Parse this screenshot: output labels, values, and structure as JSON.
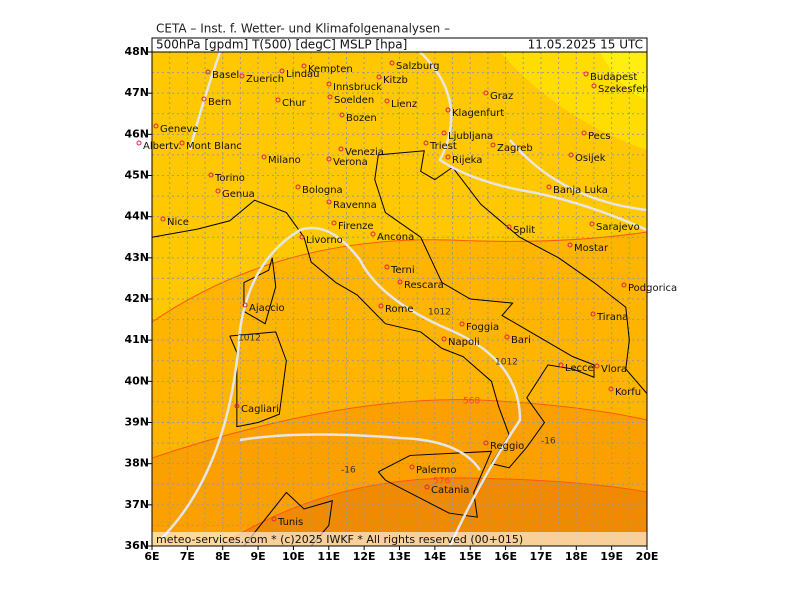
{
  "header": {
    "title": "CETA – Inst. f. Wetter- und Klimafolgenanalysen –",
    "fields": "500hPa [gpdm] T(500) [degC] MSLP [hpa]",
    "datetime": "11.05.2025 15 UTC"
  },
  "footer": "meteo-services.com * (c)2025 IWKF * All rights reserved (00+015)",
  "axes": {
    "lat": [
      "48N",
      "47N",
      "46N",
      "45N",
      "44N",
      "43N",
      "42N",
      "41N",
      "40N",
      "39N",
      "38N",
      "37N",
      "36N"
    ],
    "lon": [
      "6E",
      "7E",
      "8E",
      "9E",
      "10E",
      "11E",
      "12E",
      "13E",
      "14E",
      "15E",
      "16E",
      "17E",
      "18E",
      "19E",
      "20E"
    ]
  },
  "cities": [
    "Basel",
    "Kempten",
    "Salzburg",
    "Budapest",
    "Szekesfeh",
    "Zuerich",
    "Lindau",
    "Kitzb",
    "Innsbruck",
    "Graz",
    "Bern",
    "Chur",
    "Soelden",
    "Lienz",
    "Bozen",
    "Klagenfurt",
    "Geneve",
    "Ljubljana",
    "Pecs",
    "Albertv.",
    "Mont Blanc",
    "Venezia",
    "Milano",
    "Verona",
    "Triest",
    "Rijeka",
    "Zagreb",
    "Osijek",
    "Torino",
    "Bologna",
    "Banja Luka",
    "Genua",
    "Ravenna",
    "Nice",
    "Firenze",
    "Split",
    "Sarajevo",
    "Livorno",
    "Ancona",
    "Mostar",
    "Terni",
    "Podgorica",
    "Rescara",
    "Ajaccio",
    "Rome",
    "Tirana",
    "Foggia",
    "Bari",
    "Napoli",
    "Lecce",
    "Vlora",
    "Korfu",
    "Cagliari",
    "Reggio",
    "Palermo",
    "Catania",
    "Tunis"
  ],
  "contour_labels": [
    "1012",
    "1012",
    "1012",
    "-16",
    "-16",
    "568",
    "576"
  ]
}
